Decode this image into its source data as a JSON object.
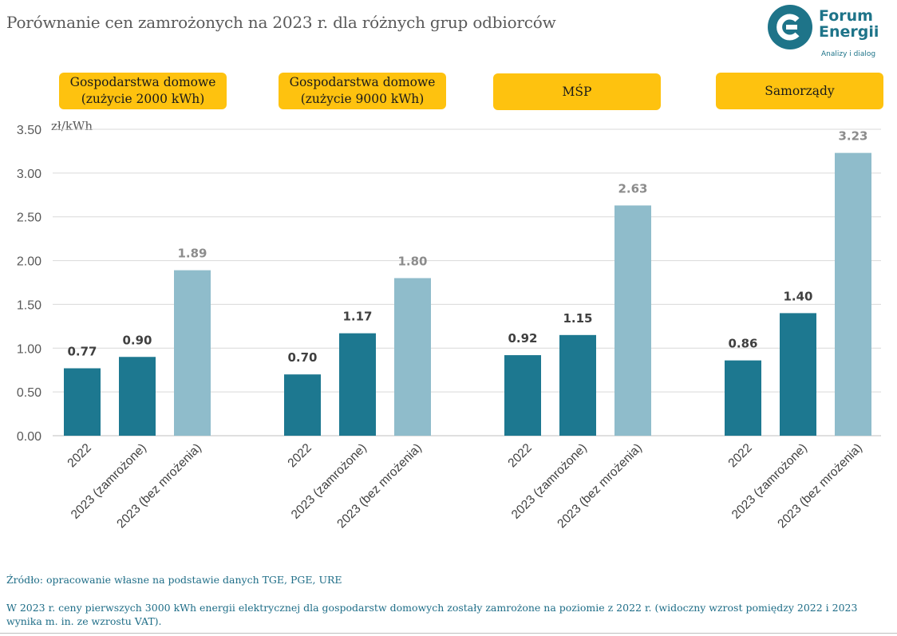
{
  "header": {
    "title": "Porównanie cen zamrożonych na 2023 r. dla różnych grup odbiorców"
  },
  "logo": {
    "name_line1": "Forum",
    "name_line2": "Energii",
    "tagline": "Analizy i dialog",
    "color": "#1e7489"
  },
  "chart_data": {
    "type": "bar",
    "unit_label": "zł/kWh",
    "ylim": [
      0,
      3.5
    ],
    "yticks": [
      "0.00",
      "0.50",
      "1.00",
      "1.50",
      "2.00",
      "2.50",
      "3.00",
      "3.50"
    ],
    "grid": true,
    "series_colors": [
      "#1d7890",
      "#1d7890",
      "#8fbccb"
    ],
    "label_colors": [
      "#404040",
      "#404040",
      "#8c8c8c"
    ],
    "groups": [
      {
        "label": "Gospodarstwa domowe\n(zużycie 2000 kWh)",
        "categories": [
          "2022",
          "2023 (zamrożone)",
          "2023 (bez mrożenia)"
        ],
        "values": [
          0.77,
          0.9,
          1.89
        ],
        "value_labels": [
          "0.77",
          "0.90",
          "1.89"
        ]
      },
      {
        "label": "Gospodarstwa domowe\n(zużycie 9000 kWh)",
        "categories": [
          "2022",
          "2023 (zamrożone)",
          "2023 (bez mrożenia)"
        ],
        "values": [
          0.7,
          1.17,
          1.8
        ],
        "value_labels": [
          "0.70",
          "1.17",
          "1.80"
        ]
      },
      {
        "label": "MŚP",
        "categories": [
          "2022",
          "2023 (zamrożone)",
          "2023 (bez mrożenia)"
        ],
        "values": [
          0.92,
          1.15,
          2.63
        ],
        "value_labels": [
          "0.92",
          "1.15",
          "2.63"
        ]
      },
      {
        "label": "Samorządy",
        "categories": [
          "2022",
          "2023 (zamrożone)",
          "2023 (bez mrożenia)"
        ],
        "values": [
          0.86,
          1.4,
          3.23
        ],
        "value_labels": [
          "0.86",
          "1.40",
          "3.23"
        ]
      }
    ]
  },
  "footer": {
    "source": "Źródło: opracowanie własne na podstawie danych TGE, PGE, URE",
    "note": "W 2023 r. ceny pierwszych 3000 kWh energii elektrycznej dla gospodarstw domowych zostały zamrożone na poziomie z 2022 r. (widoczny wzrost pomiędzy 2022 i 2023 wynika m. in. ze wzrostu VAT)."
  }
}
